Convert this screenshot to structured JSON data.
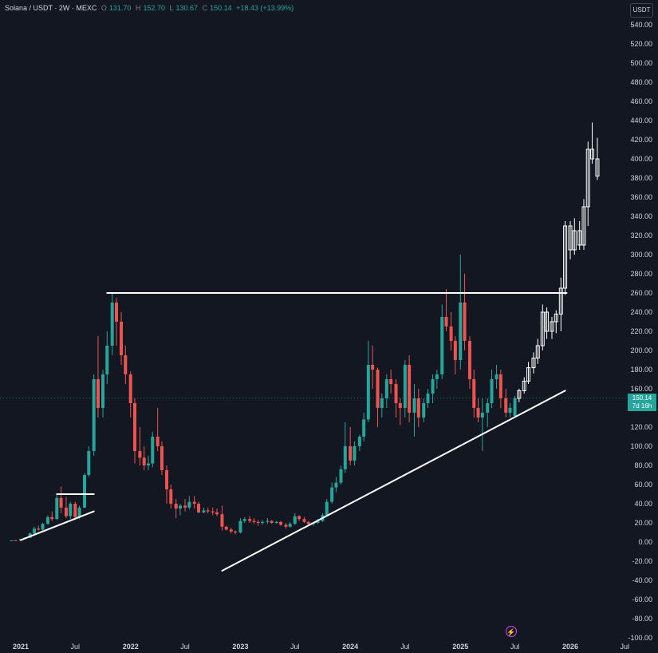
{
  "header": {
    "symbol": "Solana / USDT · 2W · MEXC",
    "open_label": "O",
    "open": "131.70",
    "high_label": "H",
    "high": "152.70",
    "low_label": "L",
    "low": "130.67",
    "close_label": "C",
    "close": "150.14",
    "change": "+18.43 (+13.99%)"
  },
  "currency": "USDT",
  "price_tag": {
    "price": "150.14",
    "countdown": "7d 16h"
  },
  "colors": {
    "up": "#26a69a",
    "down": "#ef5350",
    "projection": "#ffffff",
    "background": "#131722",
    "lines": "#ffffff"
  },
  "icons": {
    "replay": "flash-icon"
  },
  "chart_data": {
    "type": "candlestick",
    "title": "Solana / USDT · 2W · MEXC",
    "ylim": [
      -100,
      550
    ],
    "y_ticks": [
      -100,
      -80,
      -60,
      -40,
      -20,
      0,
      20,
      40,
      60,
      80,
      100,
      120,
      140,
      160,
      180,
      200,
      220,
      240,
      260,
      280,
      300,
      320,
      340,
      360,
      380,
      400,
      420,
      440,
      460,
      480,
      500,
      520,
      540
    ],
    "x_labels": [
      "2021",
      "Jul",
      "2022",
      "Jul",
      "2023",
      "Jul",
      "2024",
      "Jul",
      "2025",
      "Jul",
      "2026",
      "Jul"
    ],
    "x_label_dates": [
      "2021-01-01",
      "2021-07-01",
      "2022-01-01",
      "2022-07-01",
      "2023-01-01",
      "2023-07-01",
      "2024-01-01",
      "2024-07-01",
      "2025-01-01",
      "2025-07-01",
      "2026-01-01",
      "2026-07-01"
    ],
    "current_price": 150.14,
    "grid": false,
    "series": [
      {
        "name": "candles",
        "ohlc": [
          [
            "2020-12-01",
            1.5,
            2.0,
            1.2,
            1.8
          ],
          [
            "2020-12-15",
            1.8,
            2.2,
            1.5,
            1.6
          ],
          [
            "2021-01-01",
            1.6,
            3.5,
            1.5,
            3.2
          ],
          [
            "2021-01-15",
            3.2,
            5.0,
            2.8,
            4.5
          ],
          [
            "2021-02-01",
            4.5,
            10,
            4.2,
            9
          ],
          [
            "2021-02-15",
            9,
            16,
            8,
            14
          ],
          [
            "2021-03-01",
            14,
            17,
            12,
            13
          ],
          [
            "2021-03-15",
            13,
            20,
            12,
            19
          ],
          [
            "2021-04-01",
            19,
            28,
            18,
            26
          ],
          [
            "2021-04-15",
            26,
            32,
            22,
            24
          ],
          [
            "2021-05-01",
            24,
            50,
            23,
            46
          ],
          [
            "2021-05-15",
            46,
            58,
            30,
            36
          ],
          [
            "2021-06-01",
            36,
            47,
            25,
            27
          ],
          [
            "2021-06-15",
            27,
            42,
            24,
            40
          ],
          [
            "2021-07-01",
            40,
            42,
            23,
            26
          ],
          [
            "2021-07-15",
            26,
            38,
            24,
            36
          ],
          [
            "2021-08-01",
            36,
            72,
            35,
            70
          ],
          [
            "2021-08-15",
            70,
            100,
            68,
            95
          ],
          [
            "2021-09-01",
            95,
            175,
            90,
            170
          ],
          [
            "2021-09-15",
            170,
            215,
            130,
            140
          ],
          [
            "2021-10-01",
            140,
            180,
            130,
            175
          ],
          [
            "2021-10-15",
            175,
            220,
            165,
            205
          ],
          [
            "2021-11-01",
            205,
            260,
            195,
            250
          ],
          [
            "2021-11-15",
            250,
            255,
            205,
            230
          ],
          [
            "2021-12-01",
            230,
            240,
            185,
            195
          ],
          [
            "2021-12-15",
            195,
            205,
            165,
            175
          ],
          [
            "2022-01-01",
            175,
            178,
            130,
            145
          ],
          [
            "2022-01-15",
            145,
            150,
            82,
            95
          ],
          [
            "2022-02-01",
            95,
            120,
            80,
            88
          ],
          [
            "2022-02-15",
            88,
            100,
            75,
            80
          ],
          [
            "2022-03-01",
            80,
            90,
            75,
            82
          ],
          [
            "2022-03-15",
            82,
            115,
            78,
            110
          ],
          [
            "2022-04-01",
            110,
            140,
            95,
            100
          ],
          [
            "2022-04-15",
            100,
            105,
            70,
            75
          ],
          [
            "2022-05-01",
            75,
            80,
            40,
            55
          ],
          [
            "2022-05-15",
            55,
            60,
            35,
            40
          ],
          [
            "2022-06-01",
            40,
            45,
            25,
            35
          ],
          [
            "2022-06-15",
            35,
            40,
            28,
            38
          ],
          [
            "2022-07-01",
            38,
            45,
            32,
            36
          ],
          [
            "2022-07-15",
            36,
            48,
            34,
            42
          ],
          [
            "2022-08-01",
            42,
            48,
            35,
            40
          ],
          [
            "2022-08-15",
            40,
            42,
            30,
            31
          ],
          [
            "2022-09-01",
            31,
            36,
            30,
            33
          ],
          [
            "2022-09-15",
            33,
            36,
            30,
            32
          ],
          [
            "2022-10-01",
            32,
            36,
            28,
            31
          ],
          [
            "2022-10-15",
            31,
            35,
            27,
            29
          ],
          [
            "2022-11-01",
            29,
            38,
            12,
            16
          ],
          [
            "2022-11-15",
            16,
            17,
            12,
            13
          ],
          [
            "2022-12-01",
            13,
            15,
            9,
            11
          ],
          [
            "2022-12-15",
            11,
            12,
            8,
            10
          ],
          [
            "2023-01-01",
            10,
            25,
            9,
            22
          ],
          [
            "2023-01-15",
            22,
            26,
            20,
            24
          ],
          [
            "2023-02-01",
            24,
            27,
            20,
            22
          ],
          [
            "2023-02-15",
            22,
            25,
            19,
            21
          ],
          [
            "2023-03-01",
            21,
            23,
            17,
            20
          ],
          [
            "2023-03-15",
            20,
            23,
            18,
            21
          ],
          [
            "2023-04-01",
            21,
            25,
            19,
            22
          ],
          [
            "2023-04-15",
            22,
            23,
            19,
            20
          ],
          [
            "2023-05-01",
            20,
            22,
            19,
            21
          ],
          [
            "2023-05-15",
            21,
            22,
            17,
            18
          ],
          [
            "2023-06-01",
            18,
            20,
            14,
            16
          ],
          [
            "2023-06-15",
            16,
            21,
            15,
            19
          ],
          [
            "2023-07-01",
            19,
            30,
            18,
            27
          ],
          [
            "2023-07-15",
            27,
            28,
            22,
            24
          ],
          [
            "2023-08-01",
            24,
            26,
            20,
            21
          ],
          [
            "2023-08-15",
            21,
            22,
            18,
            19
          ],
          [
            "2023-09-01",
            19,
            21,
            17,
            20
          ],
          [
            "2023-09-15",
            20,
            24,
            19,
            22
          ],
          [
            "2023-10-01",
            22,
            30,
            21,
            28
          ],
          [
            "2023-10-15",
            28,
            45,
            27,
            42
          ],
          [
            "2023-11-01",
            42,
            62,
            40,
            57
          ],
          [
            "2023-11-15",
            57,
            68,
            52,
            62
          ],
          [
            "2023-12-01",
            62,
            80,
            60,
            76
          ],
          [
            "2023-12-15",
            76,
            125,
            72,
            100
          ],
          [
            "2024-01-01",
            100,
            120,
            80,
            85
          ],
          [
            "2024-01-15",
            85,
            105,
            80,
            100
          ],
          [
            "2024-02-01",
            100,
            112,
            95,
            110
          ],
          [
            "2024-02-15",
            110,
            135,
            105,
            128
          ],
          [
            "2024-03-01",
            128,
            210,
            125,
            185
          ],
          [
            "2024-03-15",
            185,
            205,
            160,
            180
          ],
          [
            "2024-04-01",
            180,
            182,
            120,
            140
          ],
          [
            "2024-04-15",
            140,
            155,
            130,
            150
          ],
          [
            "2024-05-01",
            150,
            175,
            140,
            170
          ],
          [
            "2024-05-15",
            170,
            180,
            155,
            165
          ],
          [
            "2024-06-01",
            165,
            170,
            130,
            145
          ],
          [
            "2024-06-15",
            145,
            150,
            122,
            140
          ],
          [
            "2024-07-01",
            140,
            190,
            130,
            185
          ],
          [
            "2024-07-15",
            185,
            195,
            125,
            135
          ],
          [
            "2024-08-01",
            135,
            165,
            110,
            150
          ],
          [
            "2024-08-15",
            150,
            160,
            120,
            130
          ],
          [
            "2024-09-01",
            130,
            150,
            125,
            145
          ],
          [
            "2024-09-15",
            145,
            160,
            140,
            155
          ],
          [
            "2024-10-01",
            155,
            175,
            145,
            170
          ],
          [
            "2024-10-15",
            170,
            180,
            160,
            175
          ],
          [
            "2024-11-01",
            175,
            248,
            170,
            235
          ],
          [
            "2024-11-15",
            235,
            264,
            220,
            225
          ],
          [
            "2024-12-01",
            225,
            240,
            200,
            210
          ],
          [
            "2024-12-15",
            210,
            215,
            175,
            190
          ],
          [
            "2025-01-01",
            190,
            300,
            180,
            250
          ],
          [
            "2025-01-15",
            250,
            280,
            200,
            210
          ],
          [
            "2025-02-01",
            210,
            215,
            160,
            170
          ],
          [
            "2025-02-15",
            170,
            180,
            130,
            140
          ],
          [
            "2025-03-01",
            140,
            150,
            125,
            130
          ],
          [
            "2025-03-15",
            130,
            150,
            95,
            135
          ],
          [
            "2025-04-01",
            135,
            150,
            120,
            145
          ],
          [
            "2025-04-15",
            145,
            180,
            140,
            170
          ],
          [
            "2025-05-01",
            170,
            185,
            160,
            175
          ],
          [
            "2025-05-15",
            175,
            180,
            140,
            150
          ],
          [
            "2025-06-01",
            150,
            160,
            130,
            135
          ],
          [
            "2025-06-15",
            135,
            145,
            130,
            140
          ],
          [
            "2025-07-01",
            131.7,
            152.7,
            130.67,
            150.14
          ]
        ]
      },
      {
        "name": "projection",
        "ohlc": [
          [
            "2025-07-15",
            150,
            160,
            146,
            158
          ],
          [
            "2025-08-01",
            158,
            172,
            155,
            168
          ],
          [
            "2025-08-15",
            168,
            188,
            165,
            182
          ],
          [
            "2025-09-01",
            182,
            198,
            176,
            192
          ],
          [
            "2025-09-15",
            192,
            212,
            186,
            205
          ],
          [
            "2025-10-01",
            205,
            248,
            200,
            240
          ],
          [
            "2025-10-15",
            240,
            245,
            212,
            220
          ],
          [
            "2025-11-01",
            220,
            235,
            212,
            230
          ],
          [
            "2025-11-15",
            230,
            242,
            218,
            238
          ],
          [
            "2025-12-01",
            238,
            276,
            220,
            265
          ],
          [
            "2025-12-15",
            265,
            335,
            258,
            330
          ],
          [
            "2026-01-01",
            330,
            335,
            295,
            305
          ],
          [
            "2026-01-15",
            305,
            338,
            300,
            325
          ],
          [
            "2026-02-01",
            325,
            335,
            305,
            310
          ],
          [
            "2026-02-15",
            310,
            358,
            305,
            350
          ],
          [
            "2026-03-01",
            350,
            418,
            330,
            410
          ],
          [
            "2026-03-15",
            410,
            438,
            395,
            400
          ],
          [
            "2026-04-01",
            400,
            422,
            378,
            382
          ]
        ]
      }
    ],
    "annotation_lines": [
      {
        "name": "resistance-line",
        "points": [
          [
            "2021-10-15",
            260
          ],
          [
            "2025-12-20",
            260
          ]
        ]
      },
      {
        "name": "early-resistance-line",
        "points": [
          [
            "2021-05-01",
            50
          ],
          [
            "2021-09-01",
            50
          ]
        ]
      },
      {
        "name": "early-support-line",
        "points": [
          [
            "2021-01-01",
            2
          ],
          [
            "2021-09-01",
            32
          ]
        ]
      },
      {
        "name": "support-trendline",
        "points": [
          [
            "2022-11-01",
            -30
          ],
          [
            "2025-12-15",
            158
          ]
        ]
      }
    ]
  }
}
